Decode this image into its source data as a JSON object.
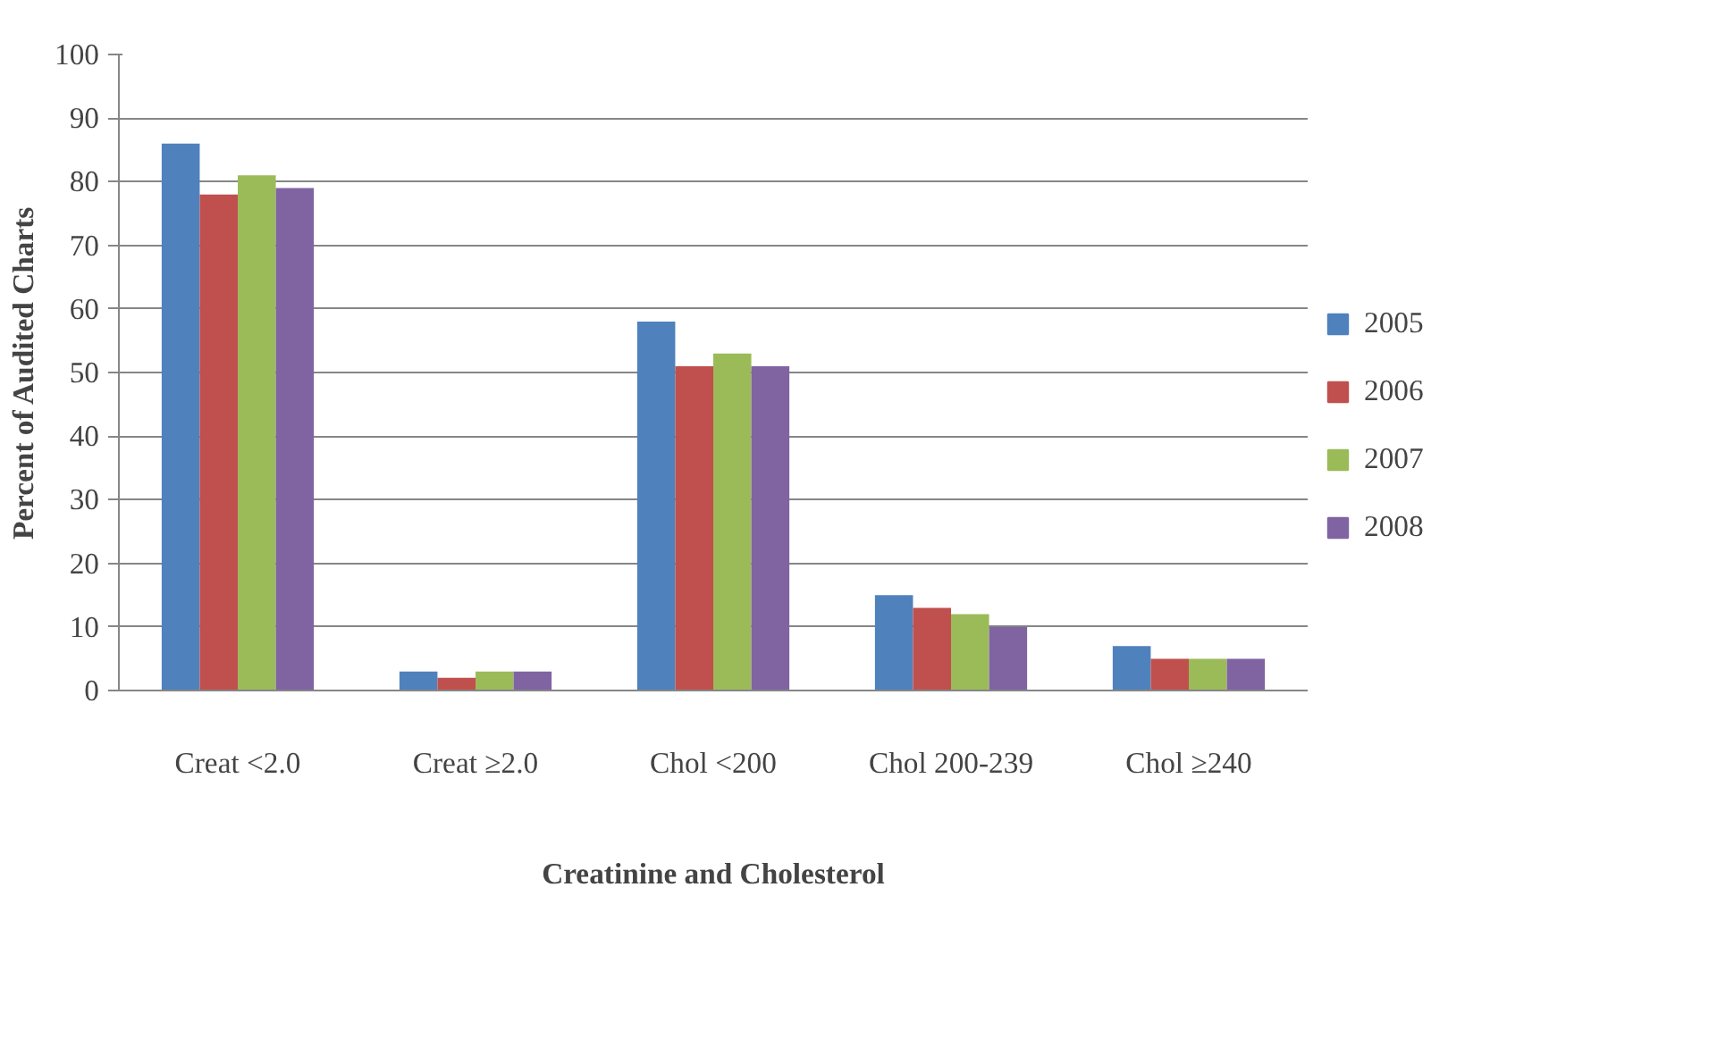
{
  "chart_data": {
    "type": "bar",
    "xlabel": "Creatinine and Cholesterol",
    "ylabel": "Percent of Audited Charts",
    "categories": [
      "Creat <2.0",
      "Creat ≥2.0",
      "Chol <200",
      "Chol 200-239",
      "Chol ≥240"
    ],
    "series": [
      {
        "name": "2005",
        "color": "#4f81bd",
        "values": [
          86,
          3,
          58,
          15,
          7
        ]
      },
      {
        "name": "2006",
        "color": "#c0504d",
        "values": [
          78,
          2,
          51,
          13,
          5
        ]
      },
      {
        "name": "2007",
        "color": "#9bbb59",
        "values": [
          81,
          3,
          53,
          12,
          5
        ]
      },
      {
        "name": "2008",
        "color": "#8064a2",
        "values": [
          79,
          3,
          51,
          10,
          5
        ]
      }
    ],
    "ylim": [
      0,
      100
    ],
    "yticks": [
      0,
      10,
      20,
      30,
      40,
      50,
      60,
      70,
      80,
      90,
      100
    ],
    "grid": "y",
    "legend": "right"
  }
}
